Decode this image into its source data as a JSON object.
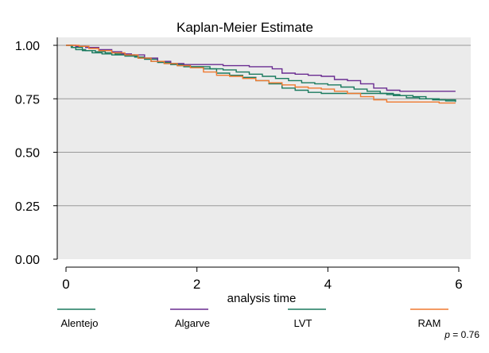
{
  "chart_data": {
    "type": "line",
    "title": "Kaplan-Meier Estimate",
    "xlabel": "analysis time",
    "ylabel": "",
    "xlim": [
      0,
      6
    ],
    "ylim": [
      0,
      1
    ],
    "x_ticks": [
      "0",
      "2",
      "4",
      "6"
    ],
    "y_ticks": [
      "0.00",
      "0.25",
      "0.50",
      "0.75",
      "1.00"
    ],
    "grid": true,
    "legend_position": "bottom",
    "series": [
      {
        "name": "Alentejo",
        "color": "#1a7a5e",
        "points": [
          [
            0,
            1.0
          ],
          [
            0.08,
            0.99
          ],
          [
            0.15,
            0.98
          ],
          [
            0.3,
            0.975
          ],
          [
            0.45,
            0.97
          ],
          [
            0.6,
            0.965
          ],
          [
            0.75,
            0.96
          ],
          [
            0.9,
            0.955
          ],
          [
            1.05,
            0.945
          ],
          [
            1.2,
            0.935
          ],
          [
            1.4,
            0.92
          ],
          [
            1.6,
            0.91
          ],
          [
            1.8,
            0.9
          ],
          [
            2.0,
            0.9
          ],
          [
            2.2,
            0.89
          ],
          [
            2.4,
            0.885
          ],
          [
            2.6,
            0.875
          ],
          [
            2.8,
            0.865
          ],
          [
            3.0,
            0.855
          ],
          [
            3.2,
            0.845
          ],
          [
            3.4,
            0.835
          ],
          [
            3.6,
            0.825
          ],
          [
            3.8,
            0.82
          ],
          [
            4.0,
            0.815
          ],
          [
            4.2,
            0.805
          ],
          [
            4.4,
            0.795
          ],
          [
            4.6,
            0.785
          ],
          [
            4.8,
            0.775
          ],
          [
            5.0,
            0.765
          ],
          [
            5.2,
            0.755
          ],
          [
            5.4,
            0.75
          ],
          [
            5.6,
            0.745
          ],
          [
            5.8,
            0.74
          ],
          [
            5.95,
            0.735
          ]
        ]
      },
      {
        "name": "Algarve",
        "color": "#6a2c91",
        "points": [
          [
            0,
            1.0
          ],
          [
            0.15,
            0.995
          ],
          [
            0.3,
            0.99
          ],
          [
            0.5,
            0.98
          ],
          [
            0.7,
            0.97
          ],
          [
            0.85,
            0.96
          ],
          [
            1.0,
            0.955
          ],
          [
            1.2,
            0.94
          ],
          [
            1.4,
            0.925
          ],
          [
            1.6,
            0.915
          ],
          [
            1.8,
            0.91
          ],
          [
            2.0,
            0.91
          ],
          [
            2.2,
            0.91
          ],
          [
            2.4,
            0.905
          ],
          [
            2.6,
            0.905
          ],
          [
            2.8,
            0.9
          ],
          [
            3.0,
            0.9
          ],
          [
            3.15,
            0.89
          ],
          [
            3.3,
            0.87
          ],
          [
            3.5,
            0.865
          ],
          [
            3.7,
            0.86
          ],
          [
            3.9,
            0.855
          ],
          [
            4.1,
            0.84
          ],
          [
            4.3,
            0.835
          ],
          [
            4.5,
            0.82
          ],
          [
            4.7,
            0.8
          ],
          [
            4.9,
            0.79
          ],
          [
            5.1,
            0.785
          ],
          [
            5.3,
            0.785
          ],
          [
            5.5,
            0.785
          ],
          [
            5.7,
            0.785
          ],
          [
            5.95,
            0.785
          ]
        ]
      },
      {
        "name": "LVT",
        "color": "#1a7a5e",
        "points": [
          [
            0,
            1.0
          ],
          [
            0.1,
            0.99
          ],
          [
            0.25,
            0.975
          ],
          [
            0.4,
            0.965
          ],
          [
            0.55,
            0.96
          ],
          [
            0.7,
            0.955
          ],
          [
            0.9,
            0.95
          ],
          [
            1.1,
            0.94
          ],
          [
            1.3,
            0.925
          ],
          [
            1.5,
            0.915
          ],
          [
            1.7,
            0.905
          ],
          [
            1.9,
            0.9
          ],
          [
            2.1,
            0.89
          ],
          [
            2.3,
            0.87
          ],
          [
            2.5,
            0.86
          ],
          [
            2.7,
            0.85
          ],
          [
            2.9,
            0.835
          ],
          [
            3.1,
            0.82
          ],
          [
            3.3,
            0.8
          ],
          [
            3.5,
            0.79
          ],
          [
            3.7,
            0.78
          ],
          [
            3.9,
            0.775
          ],
          [
            4.1,
            0.775
          ],
          [
            4.3,
            0.775
          ],
          [
            4.5,
            0.775
          ],
          [
            4.7,
            0.775
          ],
          [
            4.9,
            0.77
          ],
          [
            5.1,
            0.765
          ],
          [
            5.3,
            0.76
          ],
          [
            5.5,
            0.75
          ],
          [
            5.7,
            0.745
          ],
          [
            5.95,
            0.74
          ]
        ]
      },
      {
        "name": "RAM",
        "color": "#f07a30",
        "points": [
          [
            0,
            1.0
          ],
          [
            0.2,
            0.995
          ],
          [
            0.35,
            0.985
          ],
          [
            0.5,
            0.975
          ],
          [
            0.7,
            0.965
          ],
          [
            0.9,
            0.955
          ],
          [
            1.1,
            0.94
          ],
          [
            1.3,
            0.925
          ],
          [
            1.5,
            0.915
          ],
          [
            1.7,
            0.905
          ],
          [
            1.9,
            0.895
          ],
          [
            2.1,
            0.875
          ],
          [
            2.3,
            0.86
          ],
          [
            2.5,
            0.855
          ],
          [
            2.7,
            0.845
          ],
          [
            2.9,
            0.835
          ],
          [
            3.1,
            0.825
          ],
          [
            3.3,
            0.815
          ],
          [
            3.5,
            0.805
          ],
          [
            3.7,
            0.8
          ],
          [
            3.9,
            0.795
          ],
          [
            4.1,
            0.785
          ],
          [
            4.3,
            0.775
          ],
          [
            4.5,
            0.76
          ],
          [
            4.7,
            0.745
          ],
          [
            4.9,
            0.735
          ],
          [
            5.1,
            0.735
          ],
          [
            5.3,
            0.735
          ],
          [
            5.5,
            0.735
          ],
          [
            5.7,
            0.73
          ],
          [
            5.95,
            0.73
          ]
        ]
      }
    ],
    "annotation": {
      "label": "p",
      "value": "= 0.76"
    }
  }
}
